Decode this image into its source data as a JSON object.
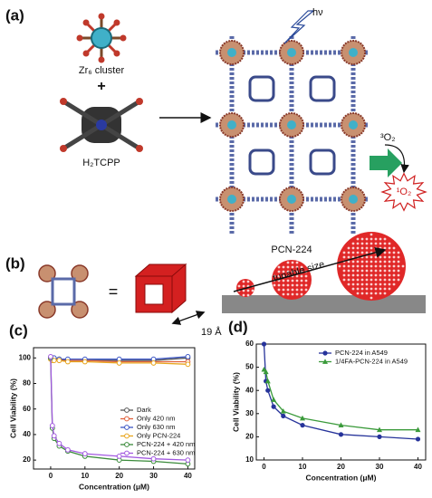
{
  "figure": {
    "panels": [
      "(a)",
      "(b)",
      "(c)",
      "(d)"
    ],
    "zr_label": "Zr₆ cluster",
    "plus": "+",
    "linker_label": "H₂TCPP",
    "light": "hν",
    "mof_label": "PCN-224",
    "triplet": "³O₂",
    "singlet": "¹O₂",
    "equals": "=",
    "size_label": "tunable size",
    "pore_label": "19 Å"
  },
  "chart_data": [
    {
      "type": "line",
      "xlabel": "Concentration (μM)",
      "ylabel": "Cell Viability (%)",
      "x": [
        0,
        0.5,
        1,
        2.5,
        5,
        10,
        20,
        30,
        40
      ],
      "xlim": [
        -5,
        42
      ],
      "ylim": [
        13,
        108
      ],
      "xticks": [
        0,
        10,
        20,
        30,
        40
      ],
      "yticks": [
        20,
        40,
        60,
        80,
        100
      ],
      "legend": "lower right",
      "marker": "circle-open",
      "series": [
        {
          "name": "Dark",
          "color": "#555555",
          "values": [
            100,
            100,
            99,
            99,
            98,
            98,
            98,
            98,
            100
          ]
        },
        {
          "name": "Only 420 nm",
          "color": "#e0603a",
          "values": [
            100,
            99,
            99,
            98,
            98,
            98,
            97,
            97,
            97
          ]
        },
        {
          "name": "Only 630 nm",
          "color": "#3b55c4",
          "values": [
            100,
            100,
            100,
            99,
            99,
            99,
            99,
            99,
            101
          ]
        },
        {
          "name": "Only PCN-224",
          "color": "#e8a51c",
          "values": [
            99,
            98,
            98,
            98,
            97,
            97,
            96,
            96,
            95
          ]
        },
        {
          "name": "PCN-224 + 420 nm",
          "color": "#3a8a3a",
          "values": [
            100,
            45,
            37,
            31,
            27,
            23,
            20,
            19,
            17
          ]
        },
        {
          "name": "PCN-224 + 630 nm",
          "color": "#a259e0",
          "values": [
            101,
            47,
            39,
            33,
            28,
            25,
            23,
            21,
            20
          ]
        }
      ]
    },
    {
      "type": "line",
      "xlabel": "Concentration (μM)",
      "ylabel": "Cell Viability (%)",
      "x": [
        0,
        0.5,
        1,
        2.5,
        5,
        10,
        20,
        30,
        40
      ],
      "xlim": [
        -2,
        42
      ],
      "ylim": [
        10,
        60
      ],
      "xticks": [
        0,
        10,
        20,
        30,
        40
      ],
      "yticks": [
        10,
        20,
        30,
        40,
        50,
        60
      ],
      "legend": "upper right",
      "series": [
        {
          "name": "PCN-224 in A549",
          "color": "#26339a",
          "marker": "circle",
          "values": [
            60,
            44,
            40,
            33,
            29,
            25,
            21,
            20,
            19
          ]
        },
        {
          "name": "1/4FA-PCN-224 in A549",
          "color": "#3a9a3a",
          "marker": "triangle",
          "values": [
            49,
            48,
            44,
            36,
            31,
            28,
            25,
            23,
            23
          ]
        }
      ]
    }
  ]
}
